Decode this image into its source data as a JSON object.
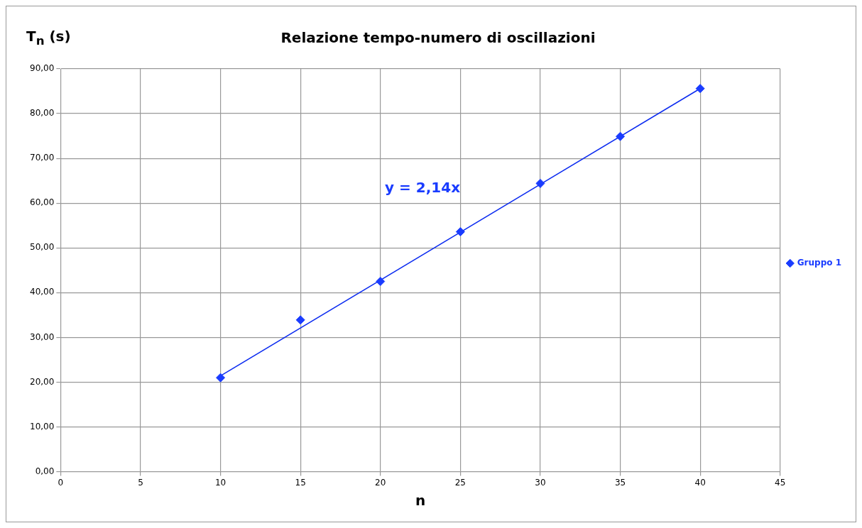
{
  "chart_data": {
    "type": "scatter",
    "title": "Relazione tempo-numero di oscillazioni",
    "xlabel": "n",
    "ylabel": "T$_{n}$ (s)",
    "x": [
      10,
      15,
      20,
      25,
      30,
      35,
      40
    ],
    "series": [
      {
        "name": "Gruppo 1",
        "color": "#1a3cff",
        "values": [
          21.0,
          33.9,
          42.5,
          53.6,
          64.4,
          74.9,
          85.6
        ]
      },
      {
        "type": "line",
        "color": "#0a2af0",
        "x": [
          10,
          40
        ],
        "values": [
          21.4,
          85.6
        ],
        "marker": "none"
      }
    ],
    "annotations": [
      "y = 2,14x"
    ],
    "xlim": [
      0,
      45
    ],
    "xticks": [
      0,
      5,
      10,
      15,
      20,
      25,
      30,
      35,
      40,
      45
    ],
    "ylim": [
      0,
      90
    ],
    "yticks": [
      {
        "value": 0,
        "label": "0,00"
      },
      {
        "value": 10,
        "label": "10,00"
      },
      {
        "value": 20,
        "label": "20,00"
      },
      {
        "value": 30,
        "label": "30,00"
      },
      {
        "value": 40,
        "label": "40,00"
      },
      {
        "value": 50,
        "label": "50,00"
      },
      {
        "value": 60,
        "label": "60,00"
      },
      {
        "value": 70,
        "label": "70,00"
      },
      {
        "value": 80,
        "label": "80,00"
      },
      {
        "value": 90,
        "label": "90,00"
      }
    ],
    "grid": true,
    "legend": "right",
    "marker": "diamond"
  }
}
